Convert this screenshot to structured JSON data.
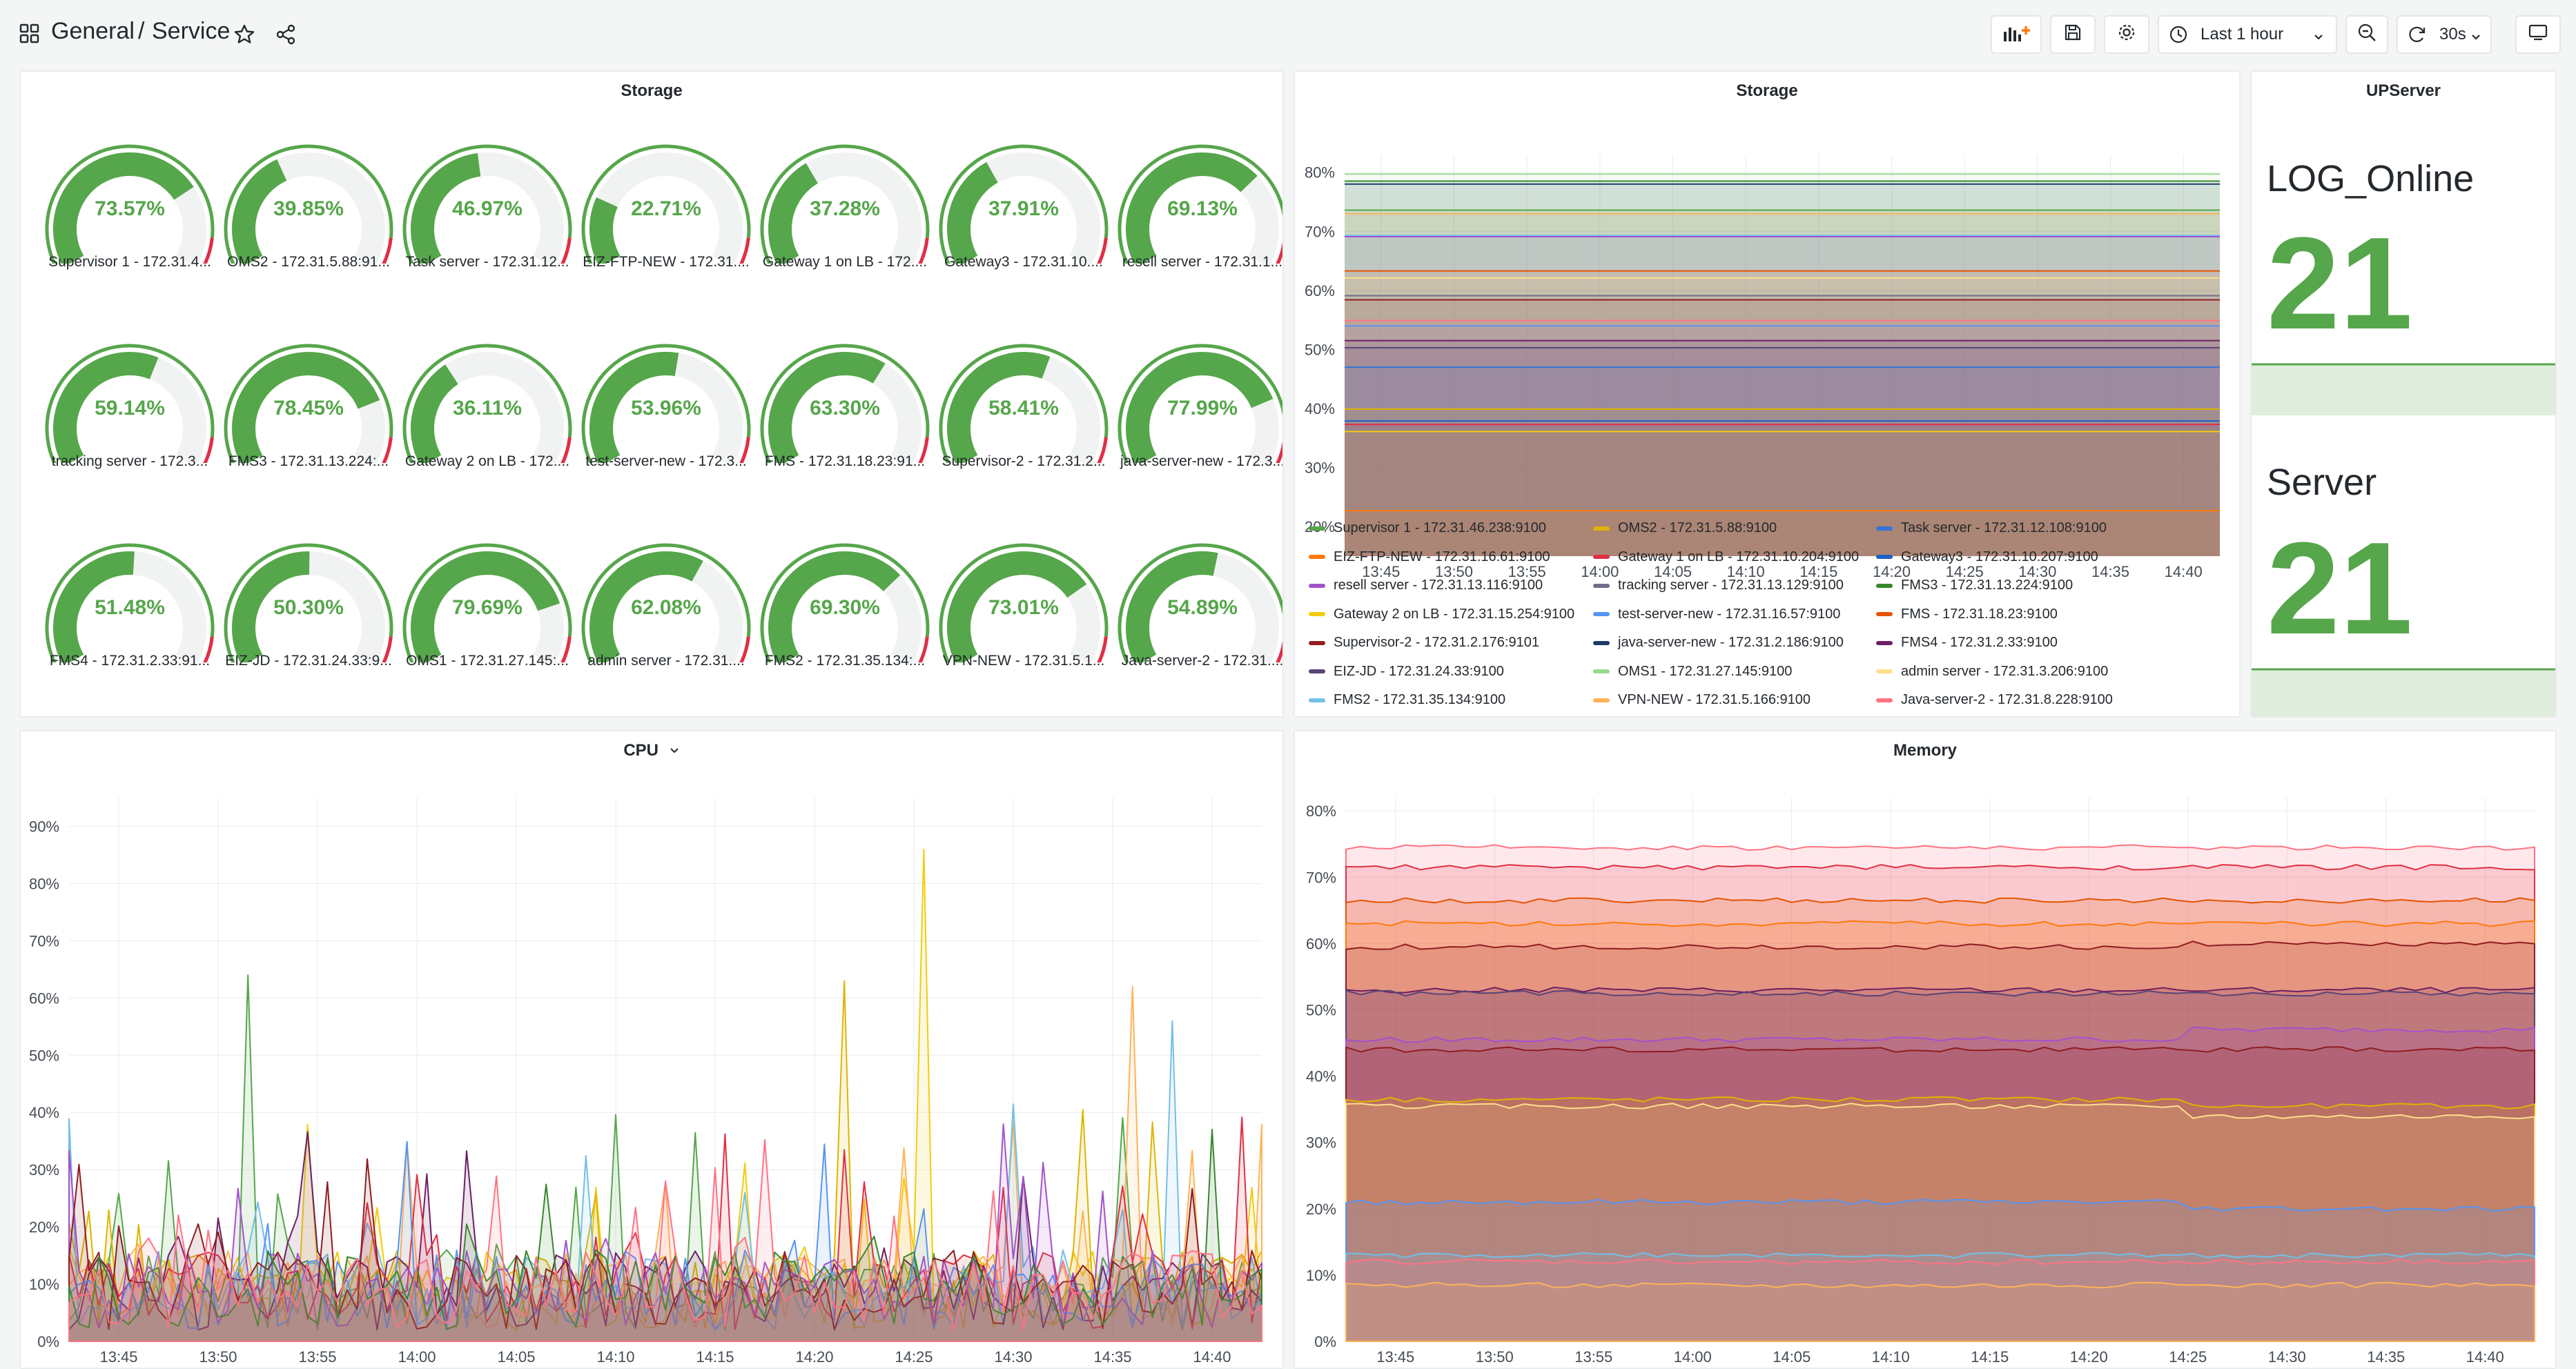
{
  "header": {
    "apps_icon": "apps-grid-icon",
    "folder": "General",
    "separator": "/",
    "title": "Service",
    "star_icon": "star-icon",
    "share_icon": "share-icon",
    "add_panel_icon": "add-panel-icon",
    "save_icon": "save-icon",
    "settings_icon": "gear-icon",
    "clock_icon": "clock-icon",
    "time_range": "Last 1 hour",
    "zoom_out_icon": "zoom-out-icon",
    "refresh_icon": "refresh-icon",
    "refresh_interval": "30s",
    "tv_icon": "tv-mode-icon"
  },
  "colors": {
    "green": "#56a64b",
    "red": "#e02f44",
    "track": "#f1f2f2",
    "grid": "#e9ebec"
  },
  "storage_gauges": {
    "title": "Storage",
    "thresholds": {
      "green_below_percent": 90,
      "red_from_percent": 90
    },
    "gauges": [
      {
        "value": 73.57,
        "text": "73.57%",
        "label": "Supervisor 1 - 172.31.4..."
      },
      {
        "value": 39.85,
        "text": "39.85%",
        "label": "OMS2 - 172.31.5.88:91..."
      },
      {
        "value": 46.97,
        "text": "46.97%",
        "label": "Task server - 172.31.12..."
      },
      {
        "value": 22.71,
        "text": "22.71%",
        "label": "EIZ-FTP-NEW - 172.31...."
      },
      {
        "value": 37.28,
        "text": "37.28%",
        "label": "Gateway 1 on LB - 172...."
      },
      {
        "value": 37.91,
        "text": "37.91%",
        "label": "Gateway3 - 172.31.10...."
      },
      {
        "value": 69.13,
        "text": "69.13%",
        "label": "resell server - 172.31.1..."
      },
      {
        "value": 59.14,
        "text": "59.14%",
        "label": "tracking server - 172.3..."
      },
      {
        "value": 78.45,
        "text": "78.45%",
        "label": "FMS3 - 172.31.13.224:..."
      },
      {
        "value": 36.11,
        "text": "36.11%",
        "label": "Gateway 2 on LB - 172...."
      },
      {
        "value": 53.96,
        "text": "53.96%",
        "label": "test-server-new - 172.3..."
      },
      {
        "value": 63.3,
        "text": "63.30%",
        "label": "FMS - 172.31.18.23:91..."
      },
      {
        "value": 58.41,
        "text": "58.41%",
        "label": "Supervisor-2 - 172.31.2..."
      },
      {
        "value": 77.99,
        "text": "77.99%",
        "label": "java-server-new - 172.3..."
      },
      {
        "value": 51.48,
        "text": "51.48%",
        "label": "FMS4 - 172.31.2.33:91..."
      },
      {
        "value": 50.3,
        "text": "50.30%",
        "label": "EIZ-JD - 172.31.24.33:9..."
      },
      {
        "value": 79.69,
        "text": "79.69%",
        "label": "OMS1 - 172.31.27.145:..."
      },
      {
        "value": 62.08,
        "text": "62.08%",
        "label": "admin server - 172.31...."
      },
      {
        "value": 69.3,
        "text": "69.30%",
        "label": "FMS2 - 172.31.35.134:..."
      },
      {
        "value": 73.01,
        "text": "73.01%",
        "label": "VPN-NEW - 172.31.5.1..."
      },
      {
        "value": 54.89,
        "text": "54.89%",
        "label": "Java-server-2 - 172.31...."
      }
    ]
  },
  "chart_data": [
    {
      "type": "area",
      "title": "Storage",
      "x_ticks": [
        "13:45",
        "13:50",
        "13:55",
        "14:00",
        "14:05",
        "14:10",
        "14:15",
        "14:20",
        "14:25",
        "14:30",
        "14:35",
        "14:40"
      ],
      "y_ticks": [
        "20%",
        "30%",
        "40%",
        "50%",
        "60%",
        "70%",
        "80%"
      ],
      "ylim": [
        15,
        83
      ],
      "legend_placement": "bottom",
      "series": [
        {
          "name": "Supervisor 1 - 172.31.46.238:9100",
          "color": "#56a64b",
          "values": [
            73.6,
            73.6
          ]
        },
        {
          "name": "OMS2 - 172.31.5.88:9100",
          "color": "#e0b400",
          "values": [
            39.9,
            39.9
          ]
        },
        {
          "name": "Task server - 172.31.12.108:9100",
          "color": "#3274d9",
          "values": [
            47.0,
            47.0
          ]
        },
        {
          "name": "EIZ-FTP-NEW - 172.31.16.61:9100",
          "color": "#ff780a",
          "values": [
            22.7,
            22.7
          ]
        },
        {
          "name": "Gateway 1 on LB - 172.31.10.204:9100",
          "color": "#e02f44",
          "values": [
            37.3,
            37.3
          ]
        },
        {
          "name": "Gateway3 - 172.31.10.207:9100",
          "color": "#1f60c4",
          "values": [
            37.9,
            37.9
          ]
        },
        {
          "name": "resell server - 172.31.13.116:9100",
          "color": "#a352cc",
          "values": [
            69.1,
            69.1
          ]
        },
        {
          "name": "tracking server - 172.31.13.129:9100",
          "color": "#6e6e8c",
          "values": [
            59.1,
            59.1
          ]
        },
        {
          "name": "FMS3 - 172.31.13.224:9100",
          "color": "#37872d",
          "values": [
            78.5,
            78.5
          ]
        },
        {
          "name": "Gateway 2 on LB - 172.31.15.254:9100",
          "color": "#f2cc0c",
          "values": [
            36.1,
            36.1
          ]
        },
        {
          "name": "test-server-new - 172.31.16.57:9100",
          "color": "#5794f2",
          "values": [
            54.0,
            54.0
          ]
        },
        {
          "name": "FMS - 172.31.18.23:9100",
          "color": "#e55400",
          "values": [
            63.3,
            63.3
          ]
        },
        {
          "name": "Supervisor-2 - 172.31.2.176:9101",
          "color": "#8f1d21",
          "values": [
            58.4,
            58.4
          ]
        },
        {
          "name": "java-server-new - 172.31.2.186:9100",
          "color": "#1a3a6b",
          "values": [
            78.0,
            78.0
          ]
        },
        {
          "name": "FMS4 - 172.31.2.33:9100",
          "color": "#6d1f62",
          "values": [
            51.5,
            51.5
          ]
        },
        {
          "name": "EIZ-JD - 172.31.24.33:9100",
          "color": "#584477",
          "values": [
            50.3,
            50.3
          ]
        },
        {
          "name": "OMS1 - 172.31.27.145:9100",
          "color": "#96d98d",
          "values": [
            79.7,
            79.7
          ]
        },
        {
          "name": "admin server - 172.31.3.206:9100",
          "color": "#ffdf8a",
          "values": [
            62.1,
            62.1
          ]
        },
        {
          "name": "FMS2 - 172.31.35.134:9100",
          "color": "#73bfe8",
          "values": [
            69.3,
            69.3
          ]
        },
        {
          "name": "VPN-NEW - 172.31.5.166:9100",
          "color": "#ffb357",
          "values": [
            73.0,
            73.0
          ]
        },
        {
          "name": "Java-server-2 - 172.31.8.228:9100",
          "color": "#ff7383",
          "values": [
            54.9,
            54.9
          ]
        }
      ]
    },
    {
      "type": "area",
      "title": "CPU",
      "x_ticks": [
        "13:45",
        "13:50",
        "13:55",
        "14:00",
        "14:05",
        "14:10",
        "14:15",
        "14:20",
        "14:25",
        "14:30",
        "14:35",
        "14:40"
      ],
      "y_ticks": [
        "0%",
        "10%",
        "20%",
        "30%",
        "40%",
        "50%",
        "60%",
        "70%",
        "80%",
        "90%"
      ],
      "ylim": [
        0,
        95
      ],
      "series_colors": [
        "#f2cc0c",
        "#56a64b",
        "#e0b400",
        "#ffb357",
        "#73bfe8",
        "#6d1f62",
        "#e02f44",
        "#5794f2",
        "#a352cc",
        "#8f1d21",
        "#37872d",
        "#ff7383"
      ],
      "notable_peaks": [
        {
          "x": "14:25",
          "y": 86
        },
        {
          "x": "13:50",
          "y": 64
        },
        {
          "x": "14:21",
          "y": 63
        },
        {
          "x": "14:36",
          "y": 62
        },
        {
          "x": "14:38",
          "y": 56
        }
      ]
    },
    {
      "type": "area",
      "title": "Memory",
      "x_ticks": [
        "13:45",
        "13:50",
        "13:55",
        "14:00",
        "14:05",
        "14:10",
        "14:15",
        "14:20",
        "14:25",
        "14:30",
        "14:35",
        "14:40"
      ],
      "y_ticks": [
        "0%",
        "10%",
        "20%",
        "30%",
        "40%",
        "50%",
        "60%",
        "70%",
        "80%"
      ],
      "ylim": [
        0,
        82
      ],
      "series": [
        {
          "color": "#ff7383",
          "values": [
            74.5,
            74.5
          ]
        },
        {
          "color": "#e02f44",
          "values": [
            71.5,
            71.5
          ]
        },
        {
          "color": "#e55400",
          "values": [
            66.5,
            66.5
          ]
        },
        {
          "color": "#ff780a",
          "values": [
            63.0,
            63.0
          ]
        },
        {
          "color": "#8f1d21",
          "values": [
            59.5,
            60.0
          ]
        },
        {
          "color": "#6d1f62",
          "values": [
            53.0,
            53.0
          ]
        },
        {
          "color": "#584477",
          "values": [
            52.5,
            52.5
          ]
        },
        {
          "color": "#a352cc",
          "values": [
            45.5,
            47.0
          ]
        },
        {
          "color": "#8f1d21",
          "values": [
            44.0,
            44.0
          ]
        },
        {
          "color": "#e0b400",
          "values": [
            36.5,
            35.5
          ]
        },
        {
          "color": "#ffdf8a",
          "values": [
            35.5,
            34.0
          ]
        },
        {
          "color": "#5794f2",
          "values": [
            21.0,
            20.0
          ]
        },
        {
          "color": "#73bfe8",
          "values": [
            13.0,
            13.0
          ]
        },
        {
          "color": "#ff7383",
          "values": [
            12.0,
            12.0
          ]
        },
        {
          "color": "#ffb357",
          "values": [
            8.5,
            8.5
          ]
        }
      ]
    }
  ],
  "upserver": {
    "title": "UPServer",
    "stats": [
      {
        "label": "LOG_Online",
        "value": "21"
      },
      {
        "label": "Server",
        "value": "21"
      }
    ]
  },
  "cpu_panel": {
    "title": "CPU",
    "chevron": "chevron-down-icon"
  },
  "memory_panel": {
    "title": "Memory"
  }
}
